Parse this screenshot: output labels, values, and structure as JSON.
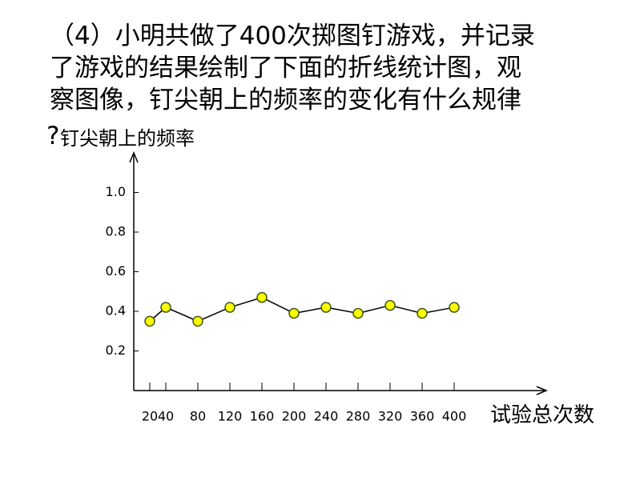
{
  "question_lines": [
    "（4）小明共做了400次掷图钉游戏，并记录",
    "了游戏的结果绘制了下面的折线统计图，观",
    "察图像，钉尖朝上的频率的变化有什么规律",
    "?"
  ],
  "chart_data": {
    "type": "line",
    "ylabel": "钉尖朝上的频率",
    "xlabel": "试验总次数",
    "x": [
      20,
      40,
      80,
      120,
      160,
      200,
      240,
      280,
      320,
      360,
      400
    ],
    "series": [
      {
        "name": "钉尖朝上的频率",
        "color": "#ffff00",
        "values": [
          0.35,
          0.42,
          0.35,
          0.42,
          0.47,
          0.39,
          0.42,
          0.39,
          0.43,
          0.39,
          0.42
        ]
      }
    ],
    "xlim": [
      0,
      515
    ],
    "xticks": [
      20,
      40,
      80,
      120,
      160,
      200,
      240,
      280,
      320,
      360,
      400
    ],
    "ylim": [
      0,
      1.2
    ],
    "yticks": [
      0.2,
      0.4,
      0.6,
      0.8,
      {
        "value": 1,
        "label": "1.0"
      }
    ]
  }
}
